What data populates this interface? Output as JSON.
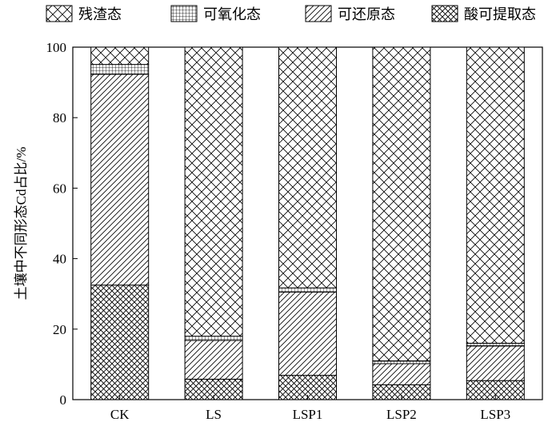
{
  "chart_data": {
    "type": "bar",
    "stacked": true,
    "categories": [
      "CK",
      "LS",
      "LSP1",
      "LSP2",
      "LSP3"
    ],
    "series": [
      {
        "name": "酸可提取态",
        "pattern": "crosshatch-dense",
        "values": [
          32.5,
          5.8,
          6.9,
          4.2,
          5.4
        ]
      },
      {
        "name": "可还原态",
        "pattern": "diagonal",
        "values": [
          59.8,
          11.0,
          23.6,
          6.0,
          9.8
        ]
      },
      {
        "name": "可氧化态",
        "pattern": "grid",
        "values": [
          2.8,
          1.2,
          1.2,
          0.8,
          0.8
        ]
      },
      {
        "name": "残渣态",
        "pattern": "crosshatch-open",
        "values": [
          4.9,
          82.0,
          68.3,
          89.0,
          84.0
        ]
      }
    ],
    "legend_order": [
      "残渣态",
      "可氧化态",
      "可还原态",
      "酸可提取态"
    ],
    "ylabel": "土壤中不同形态Cd占比/%",
    "xlabel": "",
    "ylim": [
      0,
      100
    ],
    "yticks": [
      0,
      20,
      40,
      60,
      80,
      100
    ],
    "grid": false,
    "legend_position": "top"
  }
}
